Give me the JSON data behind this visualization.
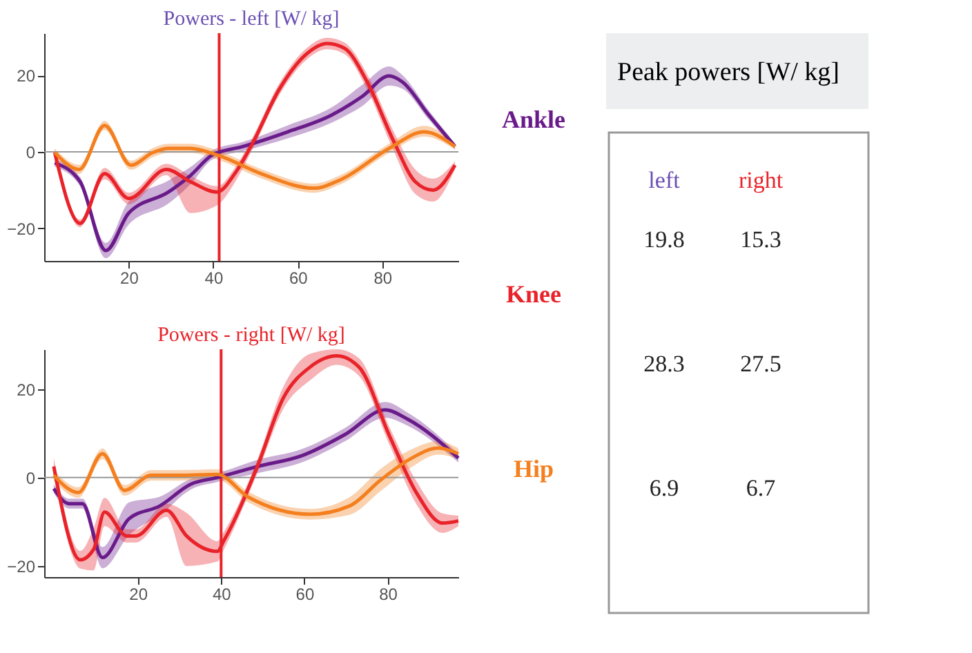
{
  "chart_data": [
    {
      "type": "line",
      "title": "Powers - left [W/ kg]",
      "xlim": [
        0,
        98
      ],
      "xticks": [
        20,
        40,
        60,
        80
      ],
      "ylim": [
        -28.5,
        31
      ],
      "yticks": [
        -20,
        0,
        20
      ],
      "grid": false,
      "legend": "right",
      "ref_lines": [
        {
          "axis": "y",
          "value": 0,
          "color": "#999999"
        },
        {
          "axis": "x",
          "value": 41.4,
          "color": "#e8232a"
        }
      ],
      "series": [
        {
          "name": "Ankle",
          "color": "#6a1b8a",
          "x": [
            2.5,
            8.5,
            14.6,
            20,
            29.4,
            34.6,
            39.8,
            47.1,
            57.6,
            68,
            75.3,
            81.6,
            84.7,
            91,
            97.2
          ],
          "values": [
            -2.9,
            -7.8,
            -25.8,
            -16,
            -10.5,
            -6.2,
            -0.8,
            1.4,
            5.2,
            9.6,
            14.5,
            19.8,
            18.3,
            9.6,
            1.4
          ],
          "lower": [
            -3.9,
            -9,
            -27.8,
            -19,
            -13.5,
            -8.5,
            -2,
            0.2,
            3.5,
            7.6,
            12,
            17.3,
            16.5,
            8.4,
            0.6
          ],
          "upper": [
            -1.9,
            -6.6,
            -23.8,
            -13,
            -7.5,
            -4,
            0.4,
            2.6,
            6.9,
            11.6,
            17.5,
            22.3,
            20.1,
            10.8,
            2.2
          ]
        },
        {
          "name": "Knee",
          "color": "#e8232a",
          "x": [
            2.5,
            8.5,
            14.3,
            20,
            28.9,
            34.6,
            40.9,
            45.1,
            49.2,
            55.5,
            61.8,
            67,
            71.1,
            76.4,
            82.6,
            87.8,
            92,
            97.2
          ],
          "values": [
            -0.2,
            -18.7,
            -5.7,
            -12.2,
            -4.6,
            -7.8,
            -10.5,
            -5.7,
            2,
            16.1,
            25.3,
            28.3,
            27,
            18.3,
            3,
            -7.8,
            -10,
            -3.5
          ],
          "lower": [
            -1.2,
            -19.7,
            -7.2,
            -13.7,
            -6.1,
            -16,
            -14,
            -8,
            0.5,
            14.6,
            23.8,
            26.8,
            25.5,
            16.3,
            0.5,
            -11,
            -13,
            -4.5
          ],
          "upper": [
            0.8,
            -17.7,
            -4.2,
            -10.7,
            -3.1,
            -6.3,
            -9,
            -4.2,
            3.5,
            17.6,
            26.8,
            29.8,
            28.5,
            20.3,
            5.5,
            -4.6,
            -7,
            -2.5
          ]
        },
        {
          "name": "Hip",
          "color": "#f47f1e",
          "x": [
            2.5,
            8.3,
            14.3,
            20.5,
            25.7,
            29.4,
            34.6,
            40.9,
            51.3,
            63.8,
            70.1,
            81.6,
            89.9,
            97.2
          ],
          "values": [
            -0.2,
            -4.6,
            6.9,
            -3.5,
            -0.2,
            0.9,
            0.9,
            -0.8,
            -5.7,
            -9.5,
            -7.3,
            0.9,
            5.2,
            1.4
          ],
          "lower": [
            -1.2,
            -5.8,
            5.7,
            -4.7,
            -1.4,
            -0.3,
            -0.3,
            -2,
            -6.9,
            -10.7,
            -8.5,
            -0.3,
            4,
            0.6
          ],
          "upper": [
            0.8,
            -3.4,
            8.1,
            -2.3,
            1,
            2.1,
            2.1,
            0.4,
            -4.5,
            -8.3,
            -6.1,
            2.1,
            6.8,
            2.2
          ]
        }
      ]
    },
    {
      "type": "line",
      "title": "Powers - right [W/ kg]",
      "xlim": [
        -2.5,
        97
      ],
      "xticks": [
        20,
        40,
        60,
        80
      ],
      "ylim": [
        -22.5,
        29
      ],
      "yticks": [
        -20,
        0,
        20
      ],
      "grid": false,
      "ref_lines": [
        {
          "axis": "y",
          "value": 0,
          "color": "#999999"
        },
        {
          "axis": "x",
          "value": 40,
          "color": "#e8232a"
        }
      ],
      "series": [
        {
          "color": "#6a1b8a",
          "x": [
            -0.2,
            3.5,
            6.7,
            11.5,
            17.9,
            25.3,
            32.7,
            39.1,
            48.7,
            59.3,
            69.9,
            79.4,
            84.8,
            97
          ],
          "values": [
            -2.5,
            -5.9,
            -5.9,
            -18.1,
            -9.3,
            -6.4,
            -1.5,
            0,
            2.5,
            4.9,
            9.8,
            15.3,
            13.2,
            4.4
          ],
          "lower": [
            -3.5,
            -7,
            -7,
            -20.5,
            -13,
            -8.5,
            -2.7,
            -1,
            1,
            3.4,
            8.3,
            13.5,
            11.7,
            3.4
          ],
          "upper": [
            -1.5,
            -4.8,
            -4.8,
            -15.7,
            -5.6,
            -4.3,
            -0.3,
            1,
            4,
            6.4,
            11.3,
            17.1,
            14.7,
            5.4
          ]
        },
        {
          "color": "#e8232a",
          "x": [
            -0.2,
            6.2,
            9.4,
            12,
            17.3,
            19.5,
            26.9,
            31.7,
            39.1,
            40.7,
            48.7,
            55,
            61.4,
            67.8,
            73.1,
            80.5,
            86.9,
            93.2,
            97
          ],
          "values": [
            2.5,
            -18.6,
            -16.2,
            -7.8,
            -13.2,
            -13.2,
            -7.4,
            -13.2,
            -16.7,
            -14.2,
            2.5,
            18.1,
            25,
            27.5,
            25,
            9.3,
            -3.4,
            -10.3,
            -9.8
          ],
          "lower": [
            0.5,
            -20.6,
            -21,
            -11,
            -14.7,
            -14.7,
            -8.9,
            -20,
            -19,
            -16.2,
            1,
            15.6,
            22,
            25.5,
            23,
            7.3,
            -6,
            -12.5,
            -11
          ],
          "upper": [
            4.5,
            -16.6,
            -11.4,
            -4.6,
            -11.7,
            -11.7,
            -5.9,
            -8,
            -14.4,
            -12.2,
            4,
            20.6,
            28,
            29,
            27,
            11.3,
            -0.8,
            -8.1,
            -8.6
          ]
        },
        {
          "color": "#f47f1e",
          "x": [
            -0.2,
            5.7,
            11.5,
            16.8,
            23.2,
            29.6,
            39.1,
            46.5,
            61.4,
            70.9,
            78.4,
            85.8,
            92.2,
            97
          ],
          "values": [
            0.5,
            -3.4,
            5.4,
            -2.9,
            0.5,
            0.5,
            0.7,
            -4.4,
            -8.3,
            -6.4,
            -0.5,
            4.4,
            6.7,
            5.4
          ],
          "lower": [
            -0.7,
            -4.6,
            4.2,
            -4.1,
            -0.7,
            -0.7,
            -0.5,
            -5.6,
            -9.5,
            -8.4,
            -3,
            2.4,
            5.2,
            4.2
          ],
          "upper": [
            1.7,
            -2.2,
            6.6,
            -1.7,
            1.7,
            1.7,
            1.9,
            -3.2,
            -7.1,
            -4.4,
            2,
            6.4,
            8.2,
            6.6
          ]
        }
      ]
    },
    {
      "type": "other",
      "title": "Peak powers [W/ kg]",
      "annotations": [
        "left",
        "right",
        "19.8",
        "15.3",
        "28.3",
        "27.5",
        "6.9",
        "6.7"
      ]
    }
  ]
}
